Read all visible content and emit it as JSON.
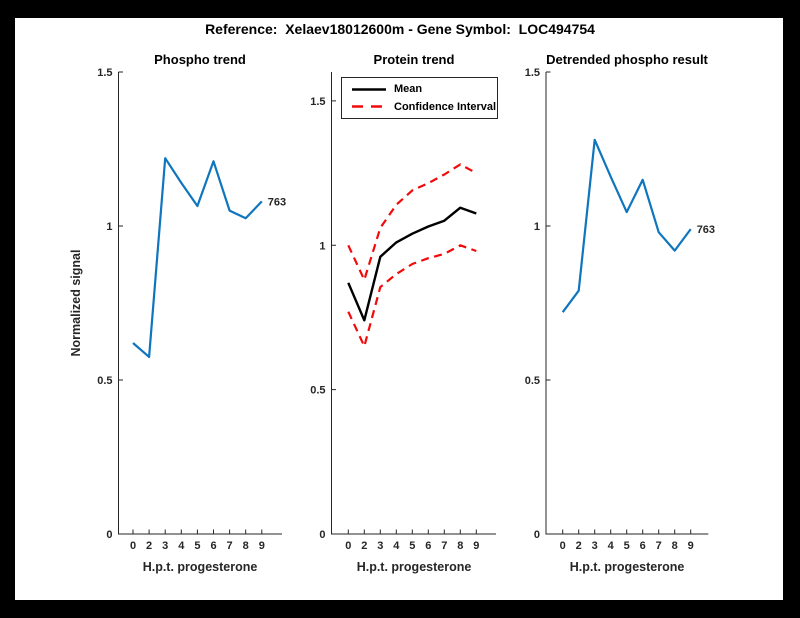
{
  "figure": {
    "title": "Reference:  Xelaev18012600m - Gene Symbol:  LOC494754"
  },
  "colors": {
    "blue": "#0f75bd",
    "red": "#f20a0a",
    "black": "#000000",
    "axis": "#262626",
    "text": "#262626",
    "background": "#000000",
    "canvas": "#ffffff"
  },
  "chart_data": [
    {
      "type": "line",
      "title": "Phospho trend",
      "xlabel": "H.p.t. progesterone",
      "ylabel": "Normalized signal",
      "x_tick_labels": [
        "0",
        "2",
        "3",
        "4",
        "5",
        "6",
        "7",
        "8",
        "9"
      ],
      "y_ticks": [
        0,
        0.5,
        1,
        1.5
      ],
      "y_tick_labels": [
        "0",
        "0.5",
        "1",
        "1.5"
      ],
      "ylim": [
        0,
        1.5
      ],
      "grid": false,
      "legend": null,
      "end_label": "763",
      "series": [
        {
          "name": "phospho-signal",
          "color": "blue",
          "style": "solid",
          "values": [
            0.62,
            0.575,
            1.22,
            1.14,
            1.065,
            1.21,
            1.05,
            1.025,
            1.08
          ]
        }
      ]
    },
    {
      "type": "line",
      "title": "Protein trend",
      "xlabel": "H.p.t. progesterone",
      "ylabel": "",
      "x_tick_labels": [
        "0",
        "2",
        "3",
        "4",
        "5",
        "6",
        "7",
        "8",
        "9"
      ],
      "y_ticks": [
        0,
        0.5,
        1,
        1.5
      ],
      "y_tick_labels": [
        "0",
        "0.5",
        "1",
        "1.5"
      ],
      "ylim": [
        0,
        1.6
      ],
      "grid": false,
      "end_label": null,
      "legend": {
        "position": "top-left",
        "entries": [
          {
            "label": "Mean",
            "color": "black",
            "style": "solid"
          },
          {
            "label": "Confidence Interval",
            "color": "red",
            "style": "dashed"
          }
        ]
      },
      "series": [
        {
          "name": "confidence-upper",
          "color": "red",
          "style": "dashed",
          "values": [
            1.0,
            0.88,
            1.06,
            1.14,
            1.19,
            1.215,
            1.245,
            1.28,
            1.25
          ]
        },
        {
          "name": "confidence-lower",
          "color": "red",
          "style": "dashed",
          "values": [
            0.77,
            0.65,
            0.855,
            0.9,
            0.935,
            0.955,
            0.97,
            1.0,
            0.98
          ]
        },
        {
          "name": "mean",
          "color": "black",
          "style": "solid",
          "values": [
            0.87,
            0.74,
            0.96,
            1.01,
            1.04,
            1.065,
            1.085,
            1.13,
            1.11
          ]
        }
      ]
    },
    {
      "type": "line",
      "title": "Detrended phospho result",
      "xlabel": "H.p.t. progesterone",
      "ylabel": "",
      "x_tick_labels": [
        "0",
        "2",
        "3",
        "4",
        "5",
        "6",
        "7",
        "8",
        "9"
      ],
      "y_ticks": [
        0,
        0.5,
        1,
        1.5
      ],
      "y_tick_labels": [
        "0",
        "0.5",
        "1",
        "1.5"
      ],
      "ylim": [
        0,
        1.5
      ],
      "grid": false,
      "legend": null,
      "end_label": "763",
      "series": [
        {
          "name": "detrended-phospho",
          "color": "blue",
          "style": "solid",
          "values": [
            0.72,
            0.79,
            1.28,
            1.16,
            1.045,
            1.15,
            0.98,
            0.92,
            0.99
          ]
        }
      ]
    }
  ]
}
